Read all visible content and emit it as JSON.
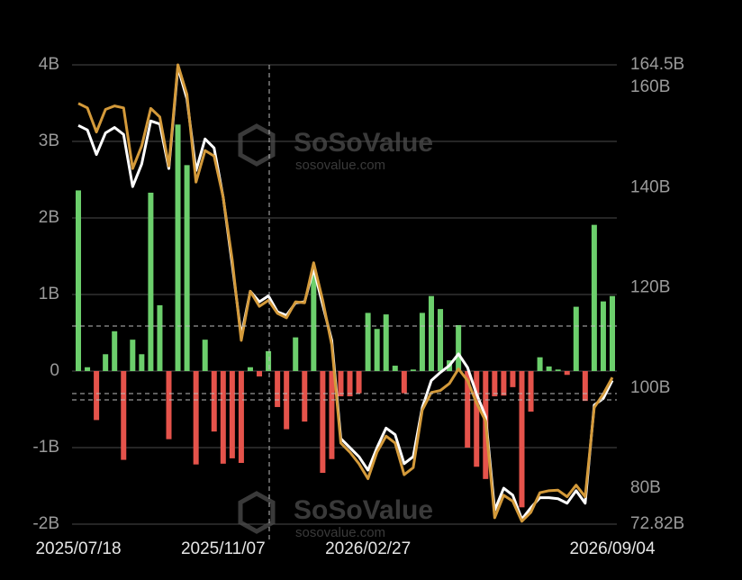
{
  "chart_data": {
    "type": "combo",
    "categories": [
      "2025/07/18",
      null,
      null,
      null,
      null,
      null,
      null,
      null,
      null,
      null,
      null,
      null,
      null,
      null,
      null,
      null,
      "2025/11/07",
      null,
      null,
      null,
      null,
      null,
      null,
      null,
      null,
      null,
      null,
      null,
      null,
      null,
      null,
      null,
      "2026/02/27",
      null,
      null,
      null,
      null,
      null,
      null,
      null,
      null,
      null,
      null,
      null,
      null,
      null,
      null,
      null,
      null,
      null,
      null,
      null,
      null,
      null,
      null,
      null,
      null,
      null,
      null,
      "2026/09/04"
    ],
    "series": [
      {
        "type": "bar",
        "colors": {
          "positive": "#6ccf6c",
          "negative": "#e5534b"
        },
        "values": [
          2.36,
          0.05,
          -0.64,
          0.22,
          0.52,
          -1.16,
          0.41,
          0.22,
          2.33,
          0.86,
          -0.89,
          3.22,
          2.69,
          -1.22,
          0.41,
          -0.79,
          -1.21,
          -1.14,
          -1.2,
          0.05,
          -0.07,
          0.26,
          -0.47,
          -0.76,
          0.44,
          -0.66,
          1.32,
          -1.33,
          -1.15,
          -0.33,
          -0.33,
          -0.29,
          0.76,
          0.55,
          0.74,
          0.07,
          -0.29,
          0.02,
          0.76,
          0.98,
          0.81,
          0.14,
          0.6,
          -1.0,
          -1.25,
          -1.41,
          -0.33,
          -0.32,
          -0.21,
          -1.78,
          -0.53,
          0.18,
          0.06,
          0.02,
          -0.05,
          0.84,
          -0.39,
          1.91,
          0.91,
          0.98
        ]
      },
      {
        "type": "line",
        "axis": "y2",
        "color": "#ffffff",
        "values": [
          152.4,
          151.5,
          146.6,
          150.9,
          152.0,
          150.6,
          140.2,
          144.7,
          153.3,
          152.7,
          143.8,
          164.0,
          157.7,
          143.4,
          149.7,
          147.9,
          138.1,
          124.7,
          110.4,
          119.3,
          117.2,
          118.4,
          115.2,
          114.5,
          117.0,
          117.2,
          123.8,
          116.6,
          109.5,
          89.9,
          88.1,
          86.3,
          83.6,
          88.1,
          92.0,
          90.7,
          84.9,
          86.3,
          96.1,
          101.5,
          103.1,
          104.5,
          106.8,
          104.1,
          98.8,
          94.3,
          75.6,
          80.0,
          78.6,
          73.8,
          76.1,
          78.1,
          78.1,
          77.9,
          77.0,
          79.5,
          77.0,
          96.6,
          97.9,
          101.5
        ]
      },
      {
        "type": "line",
        "axis": "y2",
        "color": "#d49a3a",
        "values": [
          156.8,
          155.9,
          151.1,
          155.6,
          156.3,
          155.9,
          143.8,
          148.3,
          155.8,
          154.1,
          144.3,
          164.5,
          158.6,
          141.1,
          147.4,
          146.3,
          138.1,
          125.6,
          109.5,
          119.3,
          116.3,
          117.5,
          114.9,
          114.0,
          117.2,
          117.0,
          125.0,
          117.5,
          108.6,
          89.0,
          87.2,
          84.9,
          81.9,
          87.2,
          90.4,
          89.0,
          82.7,
          84.1,
          95.6,
          99.1,
          99.5,
          100.9,
          103.8,
          101.5,
          97.0,
          93.4,
          74.1,
          78.6,
          77.4,
          73.4,
          75.2,
          79.1,
          79.5,
          79.6,
          78.3,
          80.6,
          78.3,
          96.1,
          98.8,
          102.1
        ]
      }
    ],
    "ylim": [
      -2,
      4
    ],
    "yticks": [
      {
        "value": -2,
        "label": "-2B"
      },
      {
        "value": -1,
        "label": "-1B"
      },
      0,
      {
        "value": 1,
        "label": "1B"
      },
      {
        "value": 2,
        "label": "2B"
      },
      {
        "value": 3,
        "label": "3B"
      },
      {
        "value": 4,
        "label": "4B"
      }
    ],
    "y2lim": [
      72.82,
      164.5
    ],
    "y2ticks": [
      {
        "value": 72.82,
        "label": "72.82B"
      },
      {
        "value": 80,
        "label": "80B"
      },
      {
        "value": 100,
        "label": "100B"
      },
      {
        "value": 120,
        "label": "120B"
      },
      {
        "value": 140,
        "label": "140B"
      },
      {
        "value": 160,
        "label": "160B"
      },
      {
        "value": 164.5,
        "label": "164.5B"
      }
    ],
    "grid": true,
    "watermark": {
      "brand": "SoSoValue",
      "site": "sosovalue.com"
    }
  }
}
